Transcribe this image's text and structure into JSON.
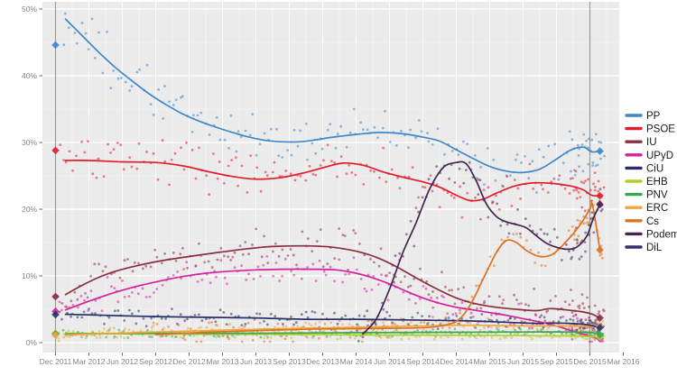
{
  "theme": {
    "panel_bg": "#ebebeb",
    "grid_major": "#ffffff",
    "grid_minor": "#ffffff",
    "election_line": "#9e9e9e",
    "axis_text": "#848484",
    "tick_mark": "#666666",
    "legend_text": "#1a1a1a",
    "page_bg": "#ffffff"
  },
  "chart_data": {
    "type": "scatter",
    "description_title": "",
    "x_axis": {
      "tick_labels": [
        "Dec 2011",
        "Mar 2012",
        "Jun 2012",
        "Sep 2012",
        "Dec 2012",
        "Mar 2013",
        "Jun 2013",
        "Sep 2013",
        "Dec 2013",
        "Mar 2014",
        "Jun 2014",
        "Sep 2014",
        "Dec 2014",
        "Mar 2015",
        "Jun 2015",
        "Sep 2015",
        "Dec 2015",
        "Mar 2016"
      ]
    },
    "y_axis": {
      "tick_labels": [
        "0%",
        "10%",
        "20%",
        "30%",
        "40%",
        "50%"
      ],
      "range": [
        0,
        50
      ]
    },
    "grid": true,
    "legend_position": "right",
    "elections": [
      {
        "label": "Dec 2011",
        "q": 0
      },
      {
        "label": "Dec 2015",
        "q": 16
      }
    ],
    "series": [
      {
        "name": "PP",
        "color": "#3e87c9",
        "spread": 4.6,
        "election_2011": 44.6,
        "election_2015": 28.7,
        "trend": [
          [
            0.3,
            48.5
          ],
          [
            0.8,
            46.0
          ],
          [
            1.3,
            43.5
          ],
          [
            1.8,
            41.2
          ],
          [
            2.3,
            39.2
          ],
          [
            2.8,
            37.3
          ],
          [
            3.3,
            35.7
          ],
          [
            3.8,
            34.3
          ],
          [
            4.3,
            33.2
          ],
          [
            4.8,
            32.3
          ],
          [
            5.3,
            31.5
          ],
          [
            5.8,
            30.8
          ],
          [
            6.3,
            30.3
          ],
          [
            6.8,
            30.1
          ],
          [
            7.3,
            30.1
          ],
          [
            7.8,
            30.4
          ],
          [
            8.3,
            30.8
          ],
          [
            9.0,
            31.2
          ],
          [
            9.7,
            31.5
          ],
          [
            10.4,
            31.3
          ],
          [
            11.0,
            30.8
          ],
          [
            11.5,
            30.2
          ],
          [
            12.0,
            28.9
          ],
          [
            12.5,
            27.6
          ],
          [
            13.0,
            26.4
          ],
          [
            13.5,
            25.7
          ],
          [
            14.0,
            25.5
          ],
          [
            14.5,
            26.0
          ],
          [
            15.0,
            27.5
          ],
          [
            15.4,
            28.8
          ],
          [
            15.8,
            29.3
          ],
          [
            16.05,
            28.6
          ],
          [
            16.3,
            28.7
          ]
        ]
      },
      {
        "name": "PSOE",
        "color": "#e41b2c",
        "spread": 4.4,
        "election_2011": 28.8,
        "election_2015": 22.0,
        "trend": [
          [
            0.3,
            27.3
          ],
          [
            1.0,
            27.3
          ],
          [
            2.0,
            27.1
          ],
          [
            3.0,
            27.0
          ],
          [
            3.8,
            26.5
          ],
          [
            4.6,
            25.6
          ],
          [
            5.3,
            24.9
          ],
          [
            6.0,
            24.5
          ],
          [
            6.7,
            24.7
          ],
          [
            7.4,
            25.4
          ],
          [
            8.0,
            26.2
          ],
          [
            8.6,
            26.9
          ],
          [
            9.2,
            26.6
          ],
          [
            9.8,
            25.6
          ],
          [
            10.4,
            24.8
          ],
          [
            11.0,
            24.1
          ],
          [
            11.5,
            23.3
          ],
          [
            12.0,
            22.1
          ],
          [
            12.4,
            21.3
          ],
          [
            12.8,
            21.5
          ],
          [
            13.2,
            22.4
          ],
          [
            13.7,
            23.4
          ],
          [
            14.2,
            23.9
          ],
          [
            14.8,
            23.9
          ],
          [
            15.4,
            23.5
          ],
          [
            15.8,
            22.9
          ],
          [
            16.05,
            22.1
          ],
          [
            16.3,
            22.0
          ]
        ]
      },
      {
        "name": "IU",
        "color": "#8b2e3e",
        "spread": 3.4,
        "election_2011": 6.9,
        "election_2015": 3.7,
        "trend": [
          [
            0.3,
            7.2
          ],
          [
            0.8,
            8.6
          ],
          [
            1.3,
            9.8
          ],
          [
            1.8,
            10.7
          ],
          [
            2.5,
            11.6
          ],
          [
            3.2,
            12.3
          ],
          [
            4.0,
            12.9
          ],
          [
            5.0,
            13.6
          ],
          [
            5.8,
            14.1
          ],
          [
            6.5,
            14.4
          ],
          [
            7.5,
            14.5
          ],
          [
            8.3,
            14.3
          ],
          [
            9.0,
            13.7
          ],
          [
            9.6,
            12.8
          ],
          [
            10.2,
            11.4
          ],
          [
            10.8,
            9.7
          ],
          [
            11.4,
            8.1
          ],
          [
            12.0,
            6.7
          ],
          [
            12.6,
            5.8
          ],
          [
            13.2,
            5.3
          ],
          [
            13.8,
            5.0
          ],
          [
            14.4,
            4.8
          ],
          [
            14.8,
            5.1
          ],
          [
            15.3,
            4.9
          ],
          [
            15.8,
            4.6
          ],
          [
            16.05,
            4.3
          ],
          [
            16.3,
            3.7
          ]
        ]
      },
      {
        "name": "UPyD",
        "color": "#d4219f",
        "spread": 2.8,
        "election_2011": 4.7,
        "election_2015": 0.6,
        "trend": [
          [
            0.3,
            4.9
          ],
          [
            1.0,
            6.2
          ],
          [
            1.7,
            7.4
          ],
          [
            2.4,
            8.4
          ],
          [
            3.1,
            9.2
          ],
          [
            3.8,
            9.9
          ],
          [
            4.5,
            10.4
          ],
          [
            5.2,
            10.7
          ],
          [
            6.0,
            10.9
          ],
          [
            6.8,
            11.0
          ],
          [
            7.6,
            11.0
          ],
          [
            8.4,
            10.9
          ],
          [
            9.0,
            10.4
          ],
          [
            9.5,
            9.7
          ],
          [
            10.0,
            8.8
          ],
          [
            10.5,
            7.7
          ],
          [
            11.0,
            6.7
          ],
          [
            11.5,
            5.9
          ],
          [
            12.0,
            5.3
          ],
          [
            12.5,
            4.9
          ],
          [
            13.0,
            4.5
          ],
          [
            13.5,
            4.1
          ],
          [
            14.0,
            3.6
          ],
          [
            14.5,
            3.1
          ],
          [
            15.0,
            2.5
          ],
          [
            15.5,
            1.7
          ],
          [
            16.05,
            0.9
          ],
          [
            16.3,
            0.6
          ]
        ]
      },
      {
        "name": "CiU",
        "color": "#27306b",
        "spread": 1.6,
        "election_2011": 4.2,
        "election_2015": null,
        "trend": [
          [
            0.3,
            4.25
          ],
          [
            1.5,
            4.1
          ],
          [
            3.0,
            3.9
          ],
          [
            4.5,
            3.8
          ],
          [
            6.0,
            3.7
          ],
          [
            7.5,
            3.5
          ],
          [
            9.0,
            3.5
          ],
          [
            10.5,
            3.4
          ],
          [
            12.0,
            3.3
          ],
          [
            13.0,
            3.15
          ],
          [
            14.0,
            2.95
          ],
          [
            14.6,
            2.85
          ]
        ]
      },
      {
        "name": "EHB",
        "color": "#b2cf2f",
        "spread": 0.8,
        "election_2011": 1.4,
        "election_2015": 0.8,
        "trend": [
          [
            0.3,
            1.4
          ],
          [
            3.0,
            1.3
          ],
          [
            6.0,
            1.25
          ],
          [
            9.0,
            1.15
          ],
          [
            12.0,
            1.1
          ],
          [
            14.0,
            1.05
          ],
          [
            15.5,
            1.0
          ],
          [
            16.05,
            0.9
          ],
          [
            16.3,
            0.8
          ]
        ]
      },
      {
        "name": "PNV",
        "color": "#3ca64c",
        "spread": 0.8,
        "election_2011": 1.3,
        "election_2015": 1.2,
        "trend": [
          [
            0.3,
            1.3
          ],
          [
            3.0,
            1.4
          ],
          [
            6.0,
            1.4
          ],
          [
            9.0,
            1.5
          ],
          [
            12.0,
            1.55
          ],
          [
            14.0,
            1.6
          ],
          [
            15.5,
            1.6
          ],
          [
            16.05,
            1.5
          ],
          [
            16.3,
            1.2
          ]
        ]
      },
      {
        "name": "ERC",
        "color": "#f0a73e",
        "spread": 1.2,
        "election_2011": 1.1,
        "election_2015": 2.4,
        "trend": [
          [
            0.3,
            1.15
          ],
          [
            1.5,
            1.35
          ],
          [
            3.0,
            1.6
          ],
          [
            4.5,
            1.8
          ],
          [
            6.0,
            2.0
          ],
          [
            7.5,
            2.15
          ],
          [
            9.0,
            2.3
          ],
          [
            10.5,
            2.45
          ],
          [
            12.0,
            2.6
          ],
          [
            13.0,
            2.6
          ],
          [
            14.0,
            2.5
          ],
          [
            15.0,
            2.5
          ],
          [
            16.05,
            2.45
          ],
          [
            16.3,
            2.4
          ]
        ]
      },
      {
        "name": "Cs",
        "color": "#dd7222",
        "spread": 2.4,
        "election_2011": null,
        "election_2015": 13.9,
        "trend": [
          [
            3.0,
            1.2
          ],
          [
            4.0,
            1.45
          ],
          [
            5.0,
            1.65
          ],
          [
            6.0,
            1.8
          ],
          [
            7.0,
            1.95
          ],
          [
            8.0,
            2.05
          ],
          [
            9.0,
            2.1
          ],
          [
            10.0,
            2.15
          ],
          [
            10.8,
            2.2
          ],
          [
            11.4,
            2.4
          ],
          [
            12.0,
            3.2
          ],
          [
            12.4,
            5.5
          ],
          [
            12.8,
            9.5
          ],
          [
            13.2,
            13.5
          ],
          [
            13.5,
            15.3
          ],
          [
            13.8,
            15.0
          ],
          [
            14.1,
            13.8
          ],
          [
            14.5,
            12.9
          ],
          [
            14.9,
            13.3
          ],
          [
            15.3,
            15.2
          ],
          [
            15.7,
            17.6
          ],
          [
            16.0,
            20.0
          ],
          [
            16.08,
            20.6
          ],
          [
            16.3,
            13.9
          ]
        ]
      },
      {
        "name": "Podemos",
        "color": "#44254f",
        "spread": 3.4,
        "election_2011": null,
        "election_2015": 20.7,
        "trend": [
          [
            9.2,
            1.3
          ],
          [
            9.6,
            3.5
          ],
          [
            10.0,
            8.0
          ],
          [
            10.4,
            13.5
          ],
          [
            10.8,
            18.0
          ],
          [
            11.2,
            23.0
          ],
          [
            11.6,
            26.2
          ],
          [
            12.0,
            27.0
          ],
          [
            12.3,
            26.8
          ],
          [
            12.6,
            24.2
          ],
          [
            12.9,
            20.8
          ],
          [
            13.2,
            18.9
          ],
          [
            13.5,
            18.1
          ],
          [
            13.8,
            17.7
          ],
          [
            14.1,
            17.2
          ],
          [
            14.4,
            16.0
          ],
          [
            14.7,
            14.9
          ],
          [
            15.0,
            14.3
          ],
          [
            15.3,
            14.0
          ],
          [
            15.6,
            14.3
          ],
          [
            15.9,
            15.9
          ],
          [
            16.1,
            18.6
          ],
          [
            16.3,
            20.7
          ]
        ]
      },
      {
        "name": "DiL",
        "color": "#2f3268",
        "spread": 1.2,
        "election_2011": null,
        "election_2015": 2.25,
        "trend": [
          [
            14.7,
            2.95
          ],
          [
            15.3,
            2.9
          ],
          [
            15.8,
            2.75
          ],
          [
            16.05,
            2.55
          ],
          [
            16.3,
            2.25
          ]
        ]
      }
    ]
  },
  "legend": {
    "items": [
      {
        "label": "PP",
        "color": "#3e87c9"
      },
      {
        "label": "PSOE",
        "color": "#e41b2c"
      },
      {
        "label": "IU",
        "color": "#8b2e3e"
      },
      {
        "label": "UPyD",
        "color": "#d4219f"
      },
      {
        "label": "CiU",
        "color": "#27306b"
      },
      {
        "label": "EHB",
        "color": "#b2cf2f"
      },
      {
        "label": "PNV",
        "color": "#3ca64c"
      },
      {
        "label": "ERC",
        "color": "#f0a73e"
      },
      {
        "label": "Cs",
        "color": "#dd7222"
      },
      {
        "label": "Podemos",
        "color": "#44254f"
      },
      {
        "label": "DiL",
        "color": "#2f3268"
      }
    ]
  }
}
